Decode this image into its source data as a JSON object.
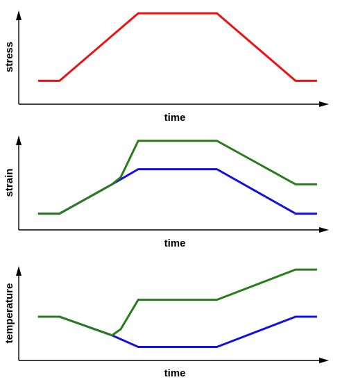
{
  "chart_data": [
    {
      "type": "line",
      "xlabel": "time",
      "ylabel": "stress",
      "xlim": [
        0,
        10
      ],
      "ylim": [
        0,
        10
      ],
      "series": [
        {
          "color": "#ee1111",
          "points": [
            [
              0.7,
              2.0
            ],
            [
              1.4,
              2.0
            ],
            [
              4.1,
              9.6
            ],
            [
              6.8,
              9.6
            ],
            [
              9.5,
              2.0
            ],
            [
              10.2,
              2.0
            ]
          ]
        }
      ]
    },
    {
      "type": "line",
      "xlabel": "time",
      "ylabel": "strain",
      "xlim": [
        0,
        10
      ],
      "ylim": [
        0,
        10
      ],
      "series": [
        {
          "color": "#1111dd",
          "points": [
            [
              0.7,
              1.2
            ],
            [
              1.4,
              1.2
            ],
            [
              3.2,
              4.5
            ],
            [
              4.1,
              6.2
            ],
            [
              6.8,
              6.2
            ],
            [
              9.5,
              1.2
            ],
            [
              10.2,
              1.2
            ]
          ]
        },
        {
          "color": "#2a7a1e",
          "points": [
            [
              0.7,
              1.2
            ],
            [
              1.4,
              1.2
            ],
            [
              3.2,
              4.5
            ],
            [
              3.5,
              5.3
            ],
            [
              4.1,
              9.4
            ],
            [
              6.8,
              9.4
            ],
            [
              9.5,
              4.5
            ],
            [
              10.2,
              4.5
            ]
          ]
        }
      ]
    },
    {
      "type": "line",
      "xlabel": "time",
      "ylabel": "temperature",
      "xlim": [
        0,
        10
      ],
      "ylim": [
        0,
        10
      ],
      "series": [
        {
          "color": "#1111dd",
          "points": [
            [
              0.7,
              4.3
            ],
            [
              1.4,
              4.3
            ],
            [
              3.2,
              2.2
            ],
            [
              4.1,
              0.9
            ],
            [
              6.8,
              0.9
            ],
            [
              9.5,
              4.3
            ],
            [
              10.2,
              4.3
            ]
          ]
        },
        {
          "color": "#2a7a1e",
          "points": [
            [
              0.7,
              4.3
            ],
            [
              1.4,
              4.3
            ],
            [
              3.2,
              2.2
            ],
            [
              3.5,
              2.9
            ],
            [
              4.1,
              6.2
            ],
            [
              6.8,
              6.2
            ],
            [
              9.5,
              9.6
            ],
            [
              10.2,
              9.6
            ]
          ]
        }
      ]
    }
  ]
}
